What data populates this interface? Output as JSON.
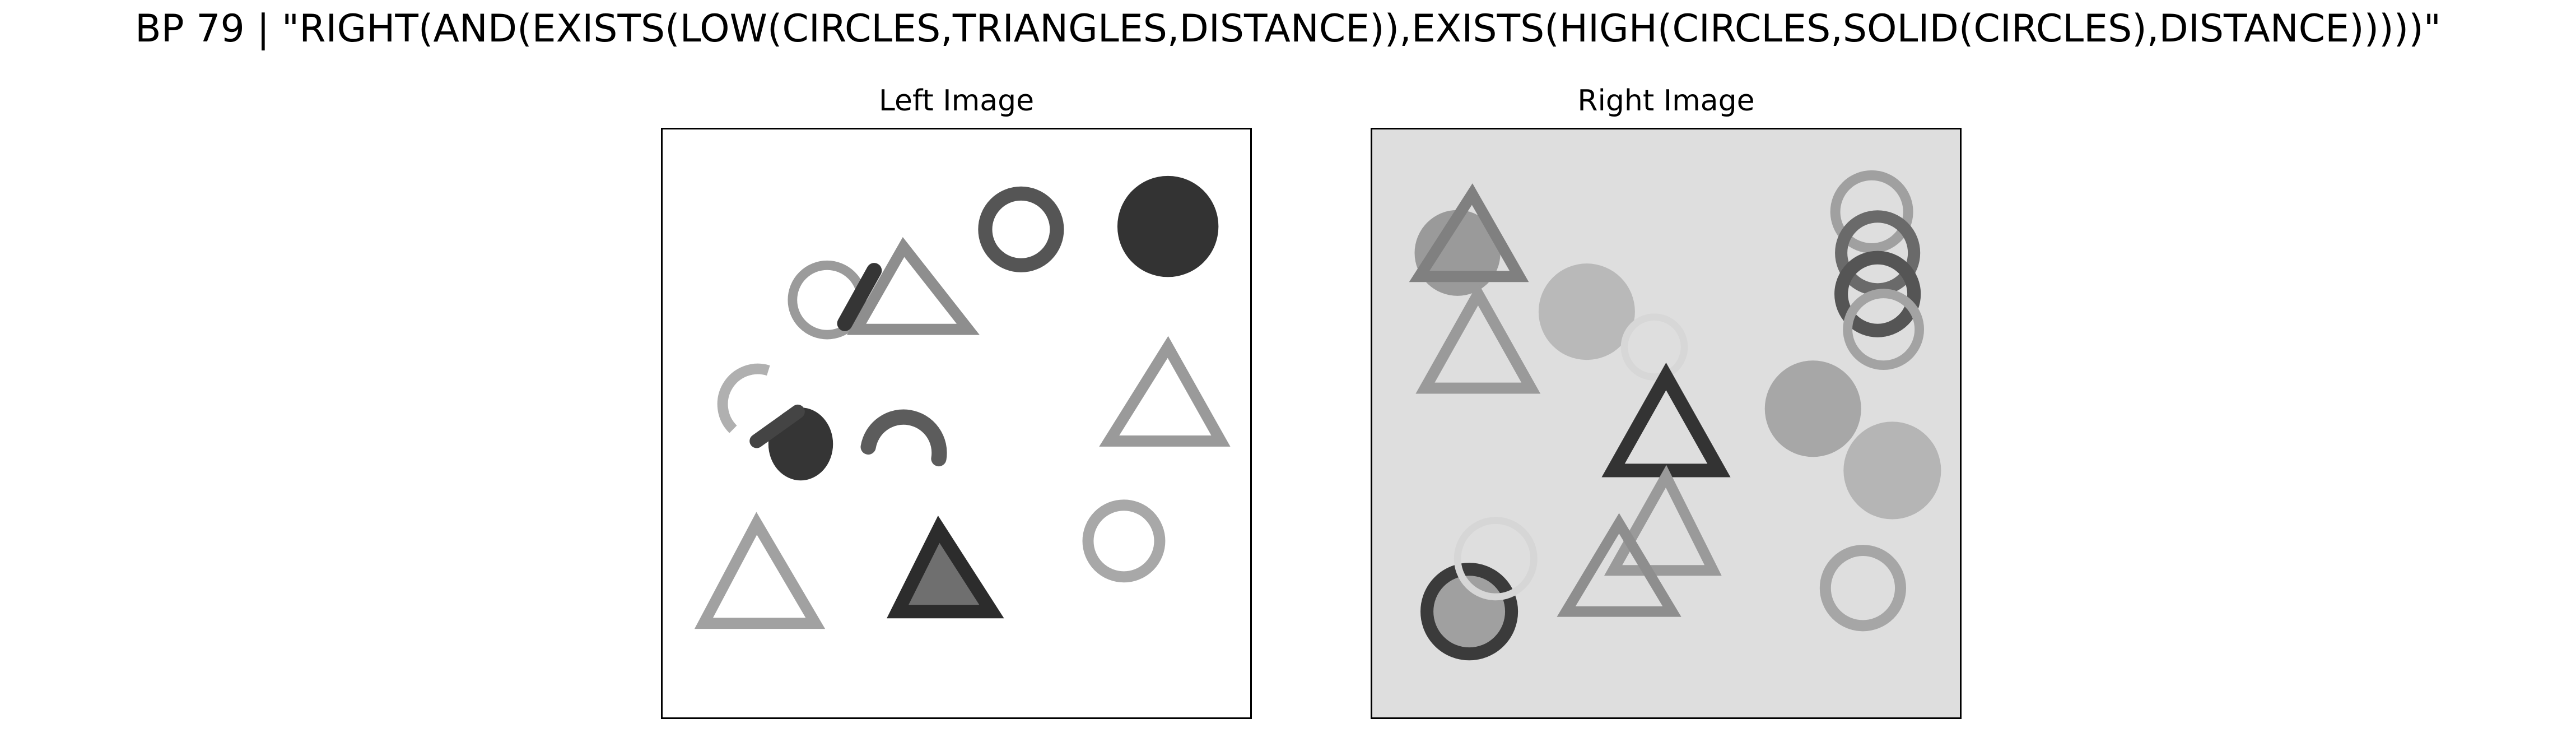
{
  "figure": {
    "title": "BP 79 | \"RIGHT(AND(EXISTS(LOW(CIRCLES,TRIANGLES,DISTANCE)),EXISTS(HIGH(CIRCLES,SOLID(CIRCLES),DISTANCE)))))\"",
    "panels": [
      {
        "title": "Left Image",
        "background": "#ffffff"
      },
      {
        "title": "Right Image",
        "background": "#dedede"
      }
    ]
  },
  "colors": {
    "frame": "#000000",
    "dark_shape": "#333333",
    "mid_shape": "#555555",
    "light_shape": "#9a9a9a",
    "fill_shape": "#a8a8a8"
  }
}
